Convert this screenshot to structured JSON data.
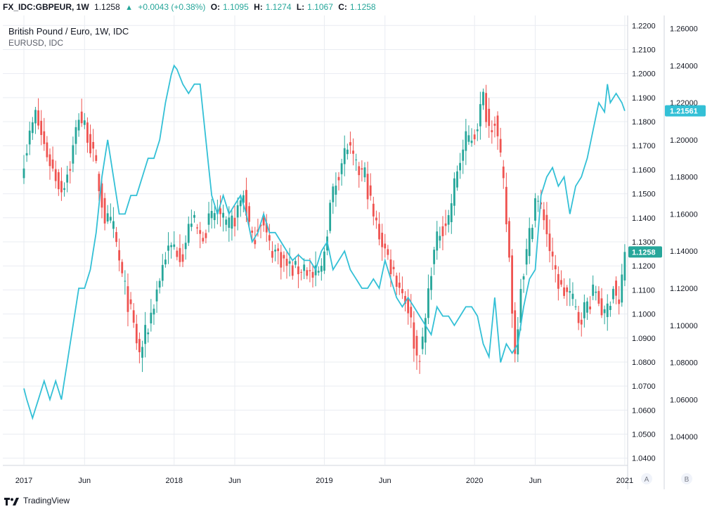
{
  "header": {
    "symbol": "FX_IDC:GBPEUR, 1W",
    "last": "1.1258",
    "change": "+0.0043 (+0.38%)",
    "open_label": "O:",
    "open": "1.1095",
    "high_label": "H:",
    "high": "1.1274",
    "low_label": "L:",
    "low": "1.1067",
    "close_label": "C:",
    "close": "1.1258"
  },
  "legend": {
    "main": "British Pound / Euro, 1W, IDC",
    "overlay": "EURUSD, IDC"
  },
  "footer": {
    "brand": "TradingView"
  },
  "axis_buttons": {
    "a": "A",
    "b": "B"
  },
  "colors": {
    "up": "#26a69a",
    "down": "#ef5350",
    "overlay": "#33c0d6",
    "grid": "#e9ecf2"
  },
  "chart_data": {
    "type": "candlestick",
    "title": "British Pound / Euro, 1W, IDC",
    "x_tick_labels": [
      "2017",
      "Jun",
      "2018",
      "Jun",
      "2019",
      "Jun",
      "2020",
      "Jun",
      "2021"
    ],
    "x_tick_weeks": [
      0,
      21,
      52,
      73,
      104,
      125,
      156,
      177,
      208
    ],
    "axis_a": {
      "ylim": [
        1.037,
        1.223
      ],
      "ticks": [
        "1.2200",
        "1.2100",
        "1.2000",
        "1.1900",
        "1.1800",
        "1.1700",
        "1.1600",
        "1.1500",
        "1.1400",
        "1.1300",
        "1.1200",
        "1.1100",
        "1.1000",
        "1.0900",
        "1.0800",
        "1.0700",
        "1.0600",
        "1.0500",
        "1.0400"
      ],
      "last_value_label": "1.1258"
    },
    "axis_b": {
      "ylim": [
        1.0245,
        1.2655
      ],
      "ticks": [
        "1.26000",
        "1.24000",
        "1.22000",
        "1.20000",
        "1.18000",
        "1.16000",
        "1.14000",
        "1.12000",
        "1.10000",
        "1.08000",
        "1.06000",
        "1.04000"
      ],
      "last_value_label": "1.21561"
    },
    "gbpeur_weekly_close_anchors": [
      [
        0,
        1.165
      ],
      [
        4,
        1.183
      ],
      [
        7,
        1.17
      ],
      [
        10,
        1.16
      ],
      [
        13,
        1.152
      ],
      [
        16,
        1.162
      ],
      [
        19,
        1.183
      ],
      [
        22,
        1.175
      ],
      [
        25,
        1.16
      ],
      [
        28,
        1.14
      ],
      [
        31,
        1.135
      ],
      [
        34,
        1.115
      ],
      [
        37,
        1.1
      ],
      [
        40,
        1.083
      ],
      [
        43,
        1.095
      ],
      [
        46,
        1.11
      ],
      [
        49,
        1.125
      ],
      [
        52,
        1.128
      ],
      [
        55,
        1.125
      ],
      [
        58,
        1.14
      ],
      [
        61,
        1.132
      ],
      [
        64,
        1.138
      ],
      [
        67,
        1.143
      ],
      [
        70,
        1.135
      ],
      [
        73,
        1.14
      ],
      [
        76,
        1.15
      ],
      [
        79,
        1.13
      ],
      [
        82,
        1.14
      ],
      [
        85,
        1.128
      ],
      [
        88,
        1.125
      ],
      [
        91,
        1.12
      ],
      [
        94,
        1.118
      ],
      [
        97,
        1.12
      ],
      [
        100,
        1.115
      ],
      [
        103,
        1.118
      ],
      [
        106,
        1.145
      ],
      [
        109,
        1.16
      ],
      [
        112,
        1.17
      ],
      [
        115,
        1.16
      ],
      [
        118,
        1.158
      ],
      [
        121,
        1.14
      ],
      [
        124,
        1.13
      ],
      [
        127,
        1.12
      ],
      [
        130,
        1.112
      ],
      [
        133,
        1.103
      ],
      [
        136,
        1.082
      ],
      [
        138,
        1.087
      ],
      [
        141,
        1.12
      ],
      [
        144,
        1.135
      ],
      [
        147,
        1.14
      ],
      [
        150,
        1.16
      ],
      [
        153,
        1.172
      ],
      [
        156,
        1.175
      ],
      [
        159,
        1.19
      ],
      [
        161,
        1.178
      ],
      [
        163,
        1.182
      ],
      [
        166,
        1.153
      ],
      [
        168,
        1.123
      ],
      [
        170,
        1.083
      ],
      [
        172,
        1.113
      ],
      [
        174,
        1.125
      ],
      [
        177,
        1.148
      ],
      [
        180,
        1.141
      ],
      [
        183,
        1.12
      ],
      [
        186,
        1.11
      ],
      [
        189,
        1.108
      ],
      [
        192,
        1.098
      ],
      [
        195,
        1.104
      ],
      [
        198,
        1.11
      ],
      [
        201,
        1.098
      ],
      [
        204,
        1.112
      ],
      [
        206,
        1.103
      ],
      [
        208,
        1.1258
      ]
    ],
    "eurusd_weekly_close_anchors": [
      [
        0,
        1.066
      ],
      [
        1,
        1.06
      ],
      [
        3,
        1.05
      ],
      [
        5,
        1.06
      ],
      [
        7,
        1.07
      ],
      [
        9,
        1.06
      ],
      [
        11,
        1.07
      ],
      [
        13,
        1.06
      ],
      [
        15,
        1.08
      ],
      [
        17,
        1.1
      ],
      [
        19,
        1.12
      ],
      [
        21,
        1.12
      ],
      [
        23,
        1.13
      ],
      [
        25,
        1.15
      ],
      [
        27,
        1.18
      ],
      [
        29,
        1.2
      ],
      [
        31,
        1.18
      ],
      [
        33,
        1.16
      ],
      [
        35,
        1.16
      ],
      [
        37,
        1.17
      ],
      [
        39,
        1.17
      ],
      [
        41,
        1.18
      ],
      [
        43,
        1.19
      ],
      [
        45,
        1.19
      ],
      [
        47,
        1.2
      ],
      [
        49,
        1.22
      ],
      [
        51,
        1.235
      ],
      [
        52,
        1.24
      ],
      [
        53,
        1.238
      ],
      [
        55,
        1.23
      ],
      [
        57,
        1.225
      ],
      [
        59,
        1.23
      ],
      [
        61,
        1.23
      ],
      [
        63,
        1.2
      ],
      [
        65,
        1.17
      ],
      [
        67,
        1.16
      ],
      [
        69,
        1.17
      ],
      [
        71,
        1.16
      ],
      [
        73,
        1.165
      ],
      [
        75,
        1.17
      ],
      [
        77,
        1.16
      ],
      [
        79,
        1.145
      ],
      [
        81,
        1.15
      ],
      [
        83,
        1.16
      ],
      [
        85,
        1.15
      ],
      [
        87,
        1.15
      ],
      [
        89,
        1.145
      ],
      [
        91,
        1.14
      ],
      [
        93,
        1.135
      ],
      [
        95,
        1.138
      ],
      [
        97,
        1.135
      ],
      [
        99,
        1.135
      ],
      [
        101,
        1.13
      ],
      [
        103,
        1.14
      ],
      [
        105,
        1.145
      ],
      [
        107,
        1.13
      ],
      [
        109,
        1.135
      ],
      [
        111,
        1.14
      ],
      [
        113,
        1.13
      ],
      [
        115,
        1.125
      ],
      [
        117,
        1.12
      ],
      [
        119,
        1.12
      ],
      [
        121,
        1.125
      ],
      [
        123,
        1.12
      ],
      [
        125,
        1.135
      ],
      [
        127,
        1.125
      ],
      [
        129,
        1.115
      ],
      [
        131,
        1.11
      ],
      [
        133,
        1.115
      ],
      [
        135,
        1.11
      ],
      [
        137,
        1.105
      ],
      [
        139,
        1.1
      ],
      [
        141,
        1.095
      ],
      [
        143,
        1.11
      ],
      [
        145,
        1.105
      ],
      [
        147,
        1.105
      ],
      [
        149,
        1.1
      ],
      [
        151,
        1.105
      ],
      [
        153,
        1.11
      ],
      [
        155,
        1.11
      ],
      [
        157,
        1.105
      ],
      [
        159,
        1.09
      ],
      [
        161,
        1.083
      ],
      [
        163,
        1.115
      ],
      [
        165,
        1.08
      ],
      [
        167,
        1.09
      ],
      [
        169,
        1.085
      ],
      [
        171,
        1.09
      ],
      [
        173,
        1.11
      ],
      [
        175,
        1.125
      ],
      [
        177,
        1.13
      ],
      [
        179,
        1.17
      ],
      [
        181,
        1.18
      ],
      [
        183,
        1.185
      ],
      [
        185,
        1.175
      ],
      [
        187,
        1.18
      ],
      [
        189,
        1.16
      ],
      [
        191,
        1.175
      ],
      [
        193,
        1.18
      ],
      [
        195,
        1.19
      ],
      [
        197,
        1.205
      ],
      [
        199,
        1.22
      ],
      [
        201,
        1.215
      ],
      [
        202,
        1.23
      ],
      [
        203,
        1.22
      ],
      [
        205,
        1.225
      ],
      [
        207,
        1.22
      ],
      [
        208,
        1.2156
      ]
    ]
  }
}
